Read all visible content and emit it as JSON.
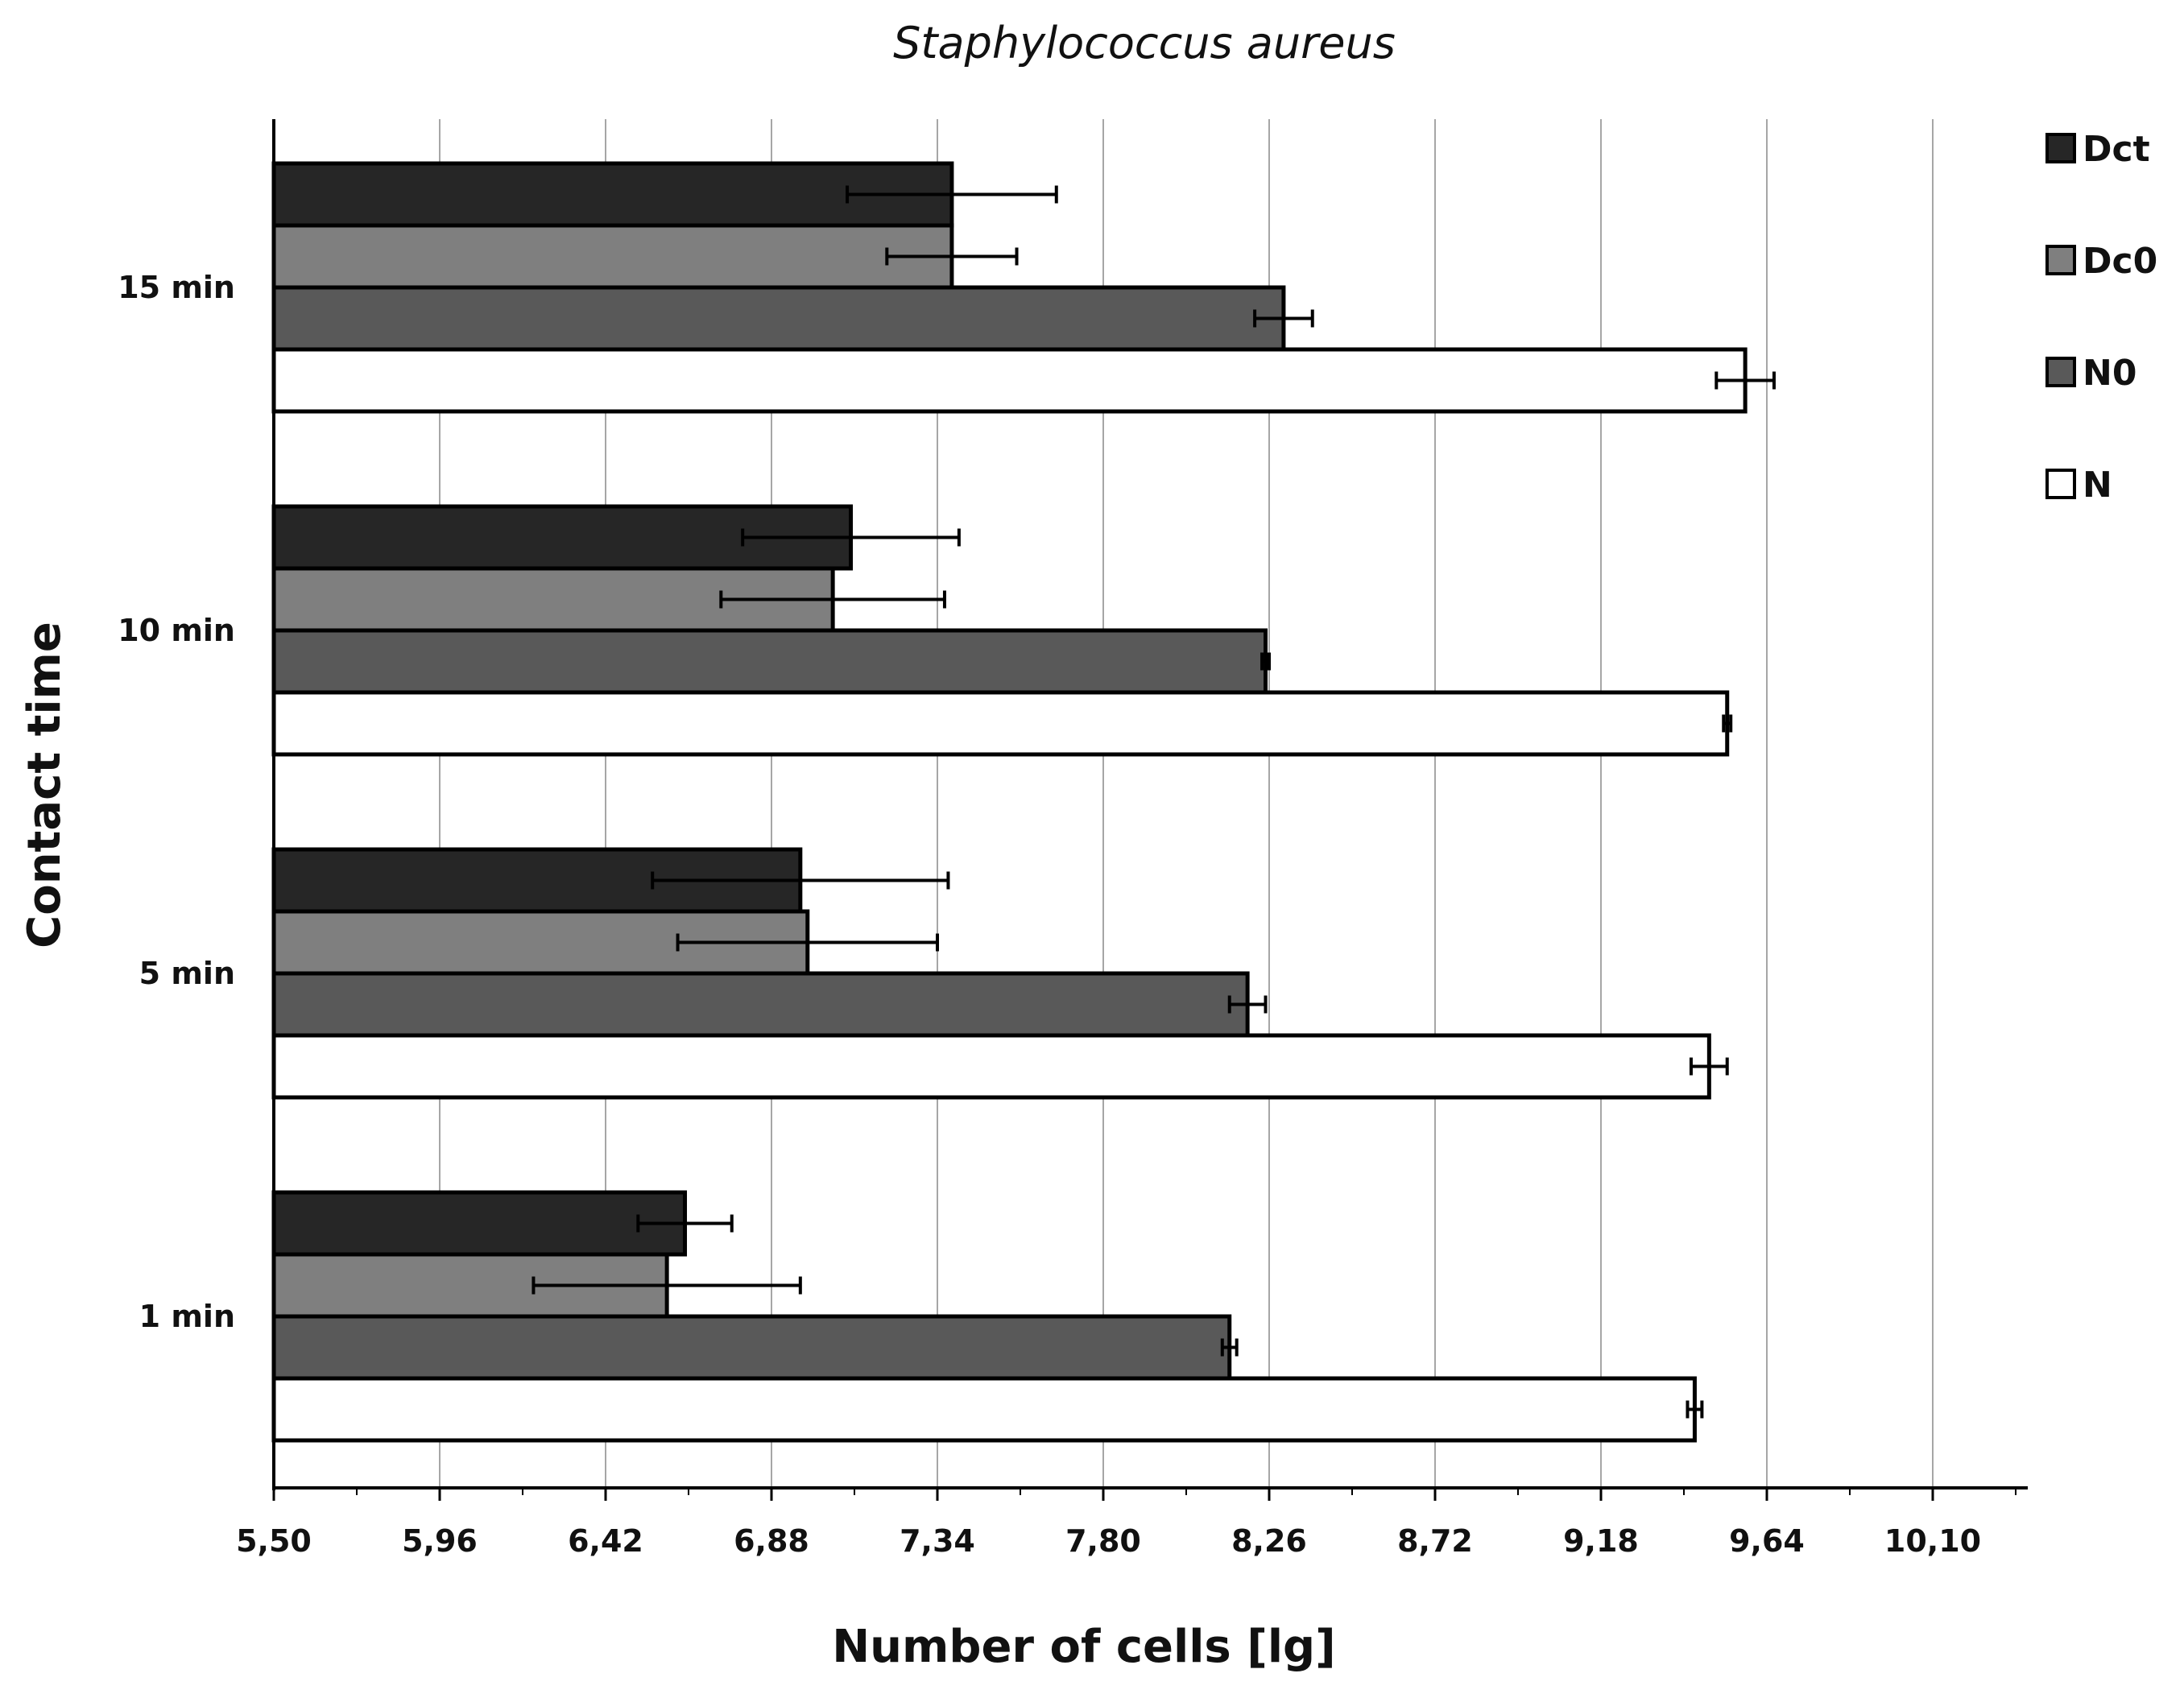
{
  "chart_data": {
    "type": "bar",
    "orientation": "horizontal",
    "title": "Staphylococcus aureus",
    "xlabel": "Number of cells [lg]",
    "ylabel": "Contact  time",
    "xlim": [
      5.5,
      10.56
    ],
    "x_ticks": [
      "5,50",
      "5,96",
      "6,42",
      "6,88",
      "7,34",
      "7,80",
      "8,26",
      "8,72",
      "9,18",
      "9,64",
      "10,10"
    ],
    "x_tick_values": [
      5.5,
      5.96,
      6.42,
      6.88,
      7.34,
      7.8,
      8.26,
      8.72,
      9.18,
      9.64,
      10.1
    ],
    "categories": [
      "1 min",
      "5 min",
      "10 min",
      "15 min"
    ],
    "grid": "vertical",
    "legend_position": "right",
    "series": [
      {
        "name": "Dct",
        "color": "#262626",
        "values": [
          6.64,
          6.96,
          7.1,
          7.38
        ],
        "errors": [
          0.13,
          0.41,
          0.3,
          0.29
        ]
      },
      {
        "name": "Dc0",
        "color": "#7f7f7f",
        "values": [
          6.59,
          6.98,
          7.05,
          7.38
        ],
        "errors": [
          0.37,
          0.36,
          0.31,
          0.18
        ]
      },
      {
        "name": "N0",
        "color": "#595959",
        "values": [
          8.15,
          8.2,
          8.25,
          8.3
        ],
        "errors": [
          0.02,
          0.05,
          0.01,
          0.08
        ]
      },
      {
        "name": "N",
        "color": "#ffffff",
        "values": [
          9.44,
          9.48,
          9.53,
          9.58
        ],
        "errors": [
          0.02,
          0.05,
          0.01,
          0.08
        ]
      }
    ]
  }
}
